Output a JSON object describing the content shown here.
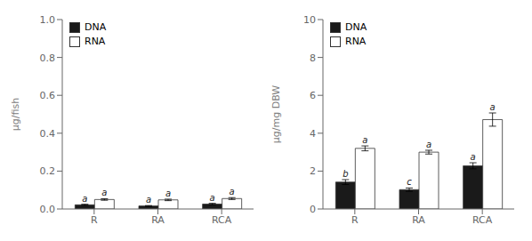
{
  "chart_data": [
    {
      "type": "bar",
      "y_label": "μg/fish",
      "categories": [
        "R",
        "RA",
        "RCA"
      ],
      "series": [
        {
          "name": "DNA",
          "color": "#1a1a1a",
          "values": [
            0.022,
            0.016,
            0.026
          ],
          "errors": [
            0.003,
            0.002,
            0.004
          ],
          "annotations": [
            "a",
            "a",
            "a"
          ]
        },
        {
          "name": "RNA",
          "color": "#ffffff",
          "values": [
            0.05,
            0.048,
            0.055
          ],
          "errors": [
            0.004,
            0.004,
            0.005
          ],
          "annotations": [
            "a",
            "a",
            "a"
          ]
        }
      ],
      "ylim": [
        0,
        1.0
      ],
      "yticks": [
        {
          "value": 0.0,
          "label": "0.0"
        },
        0.2,
        0.4,
        0.6,
        0.8,
        {
          "value": 1.0,
          "label": "1.0"
        }
      ],
      "legend": "upper left",
      "grid": false
    },
    {
      "type": "bar",
      "y_label": "μg/mg DBW",
      "categories": [
        "R",
        "RA",
        "RCA"
      ],
      "series": [
        {
          "name": "DNA",
          "color": "#1a1a1a",
          "values": [
            1.42,
            1.02,
            2.28
          ],
          "errors": [
            0.13,
            0.09,
            0.16
          ],
          "annotations": [
            "b",
            "c",
            "a"
          ]
        },
        {
          "name": "RNA",
          "color": "#ffffff",
          "values": [
            3.2,
            3.0,
            4.72
          ],
          "errors": [
            0.13,
            0.1,
            0.35
          ],
          "annotations": [
            "a",
            "a",
            "a"
          ]
        }
      ],
      "ylim": [
        0,
        10
      ],
      "yticks": [
        0,
        2,
        4,
        6,
        8,
        10
      ],
      "legend": "upper left",
      "grid": false
    }
  ]
}
